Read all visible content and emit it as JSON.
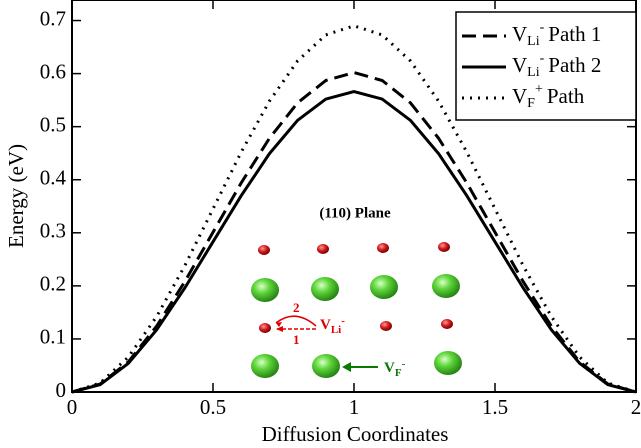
{
  "chart_data": {
    "type": "line",
    "x_label": "Diffusion Coordinates",
    "y_label": "Energy (eV)",
    "x": [
      0,
      0.1,
      0.2,
      0.3,
      0.4,
      0.5,
      0.6,
      0.7,
      0.8,
      0.9,
      1,
      1.1,
      1.2,
      1.3,
      1.4,
      1.5,
      1.6,
      1.7,
      1.8,
      1.9,
      2
    ],
    "series": [
      {
        "name": "Path 1",
        "symbol": {
          "base": "V",
          "sub": "Li",
          "sup": "-"
        },
        "color": "#000000",
        "dash": "14 7",
        "values": [
          0,
          0.015,
          0.057,
          0.124,
          0.208,
          0.301,
          0.394,
          0.478,
          0.545,
          0.587,
          0.602,
          0.587,
          0.545,
          0.478,
          0.394,
          0.301,
          0.208,
          0.124,
          0.057,
          0.015,
          0
        ]
      },
      {
        "name": "Path 2",
        "symbol": {
          "base": "V",
          "sub": "Li",
          "sup": "-"
        },
        "color": "#000000",
        "dash": "none",
        "values": [
          0,
          0.014,
          0.054,
          0.117,
          0.196,
          0.283,
          0.37,
          0.449,
          0.512,
          0.552,
          0.566,
          0.552,
          0.512,
          0.449,
          0.37,
          0.283,
          0.196,
          0.117,
          0.054,
          0.014,
          0
        ]
      },
      {
        "name": "Path",
        "symbol": {
          "base": "V",
          "sub": "F",
          "sup": "+"
        },
        "color": "#000000",
        "dash": "2 6",
        "values": [
          0,
          0.017,
          0.066,
          0.142,
          0.238,
          0.345,
          0.452,
          0.548,
          0.624,
          0.673,
          0.69,
          0.673,
          0.624,
          0.548,
          0.452,
          0.345,
          0.238,
          0.142,
          0.066,
          0.017,
          0
        ]
      }
    ],
    "xlim": [
      0,
      2
    ],
    "ylim": [
      0,
      0.75
    ],
    "xticks": [
      0,
      0.5,
      1,
      1.5,
      2
    ],
    "yticks": [
      0,
      0.1,
      0.2,
      0.3,
      0.4,
      0.5,
      0.6,
      0.7
    ],
    "legend": "upper right",
    "inset": {
      "title": "(110) Plane",
      "li_label": {
        "base": "V",
        "sub": "Li",
        "sup": "-"
      },
      "path_1": "1",
      "path_2": "2",
      "f_label": {
        "base": "V",
        "sub": "F",
        "sup": "-"
      }
    }
  }
}
